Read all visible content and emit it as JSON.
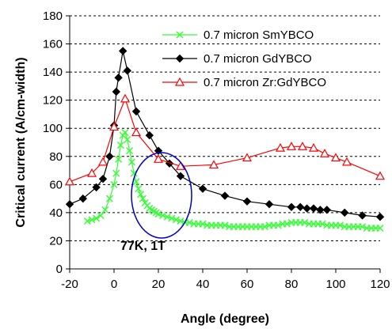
{
  "chart_data": {
    "type": "line",
    "xlabel": "Angle (degree)",
    "ylabel": "Critical current (A/cm-width)",
    "xlim": [
      -20,
      120
    ],
    "ylim": [
      0,
      180
    ],
    "x_ticks": [
      -20,
      0,
      20,
      40,
      60,
      80,
      100,
      120
    ],
    "y_ticks": [
      0,
      20,
      40,
      60,
      80,
      100,
      120,
      140,
      160,
      180
    ],
    "grid": "none",
    "legend_placement": "top-right",
    "annotation": "77K, 1T",
    "highlight": "ellipse around 20 degree, 60-80 A/cm",
    "series": [
      {
        "name": "0.7 micron SmYBCO",
        "color": "#33ff33",
        "marker": "x",
        "points": [
          [
            -12,
            34
          ],
          [
            -10,
            35
          ],
          [
            -8,
            36
          ],
          [
            -6,
            38
          ],
          [
            -4,
            42
          ],
          [
            -2,
            50
          ],
          [
            0,
            60
          ],
          [
            1,
            68
          ],
          [
            2,
            78
          ],
          [
            3,
            88
          ],
          [
            4,
            95
          ],
          [
            5,
            97
          ],
          [
            6,
            92
          ],
          [
            7,
            84
          ],
          [
            8,
            76
          ],
          [
            9,
            68
          ],
          [
            10,
            62
          ],
          [
            11,
            57
          ],
          [
            12,
            53
          ],
          [
            13,
            50
          ],
          [
            14,
            47
          ],
          [
            15,
            45
          ],
          [
            16,
            43
          ],
          [
            17,
            42
          ],
          [
            18,
            41
          ],
          [
            19,
            40
          ],
          [
            20,
            39
          ],
          [
            22,
            38
          ],
          [
            24,
            37
          ],
          [
            26,
            36
          ],
          [
            28,
            35
          ],
          [
            30,
            34
          ],
          [
            32,
            33
          ],
          [
            34,
            33
          ],
          [
            36,
            32
          ],
          [
            38,
            32
          ],
          [
            40,
            32
          ],
          [
            42,
            31
          ],
          [
            44,
            31
          ],
          [
            46,
            31
          ],
          [
            48,
            31
          ],
          [
            50,
            31
          ],
          [
            52,
            30
          ],
          [
            54,
            30
          ],
          [
            56,
            30
          ],
          [
            58,
            30
          ],
          [
            60,
            30
          ],
          [
            62,
            30
          ],
          [
            64,
            30
          ],
          [
            66,
            30
          ],
          [
            68,
            30
          ],
          [
            70,
            31
          ],
          [
            72,
            31
          ],
          [
            74,
            31
          ],
          [
            76,
            32
          ],
          [
            78,
            32
          ],
          [
            80,
            33
          ],
          [
            82,
            33
          ],
          [
            84,
            33
          ],
          [
            86,
            33
          ],
          [
            88,
            32
          ],
          [
            90,
            32
          ],
          [
            92,
            32
          ],
          [
            94,
            32
          ],
          [
            96,
            31
          ],
          [
            98,
            31
          ],
          [
            100,
            31
          ],
          [
            102,
            31
          ],
          [
            104,
            30
          ],
          [
            106,
            30
          ],
          [
            108,
            30
          ],
          [
            110,
            30
          ],
          [
            112,
            30
          ],
          [
            114,
            29
          ],
          [
            116,
            29
          ],
          [
            118,
            29
          ],
          [
            120,
            29
          ]
        ]
      },
      {
        "name": "0.7 micron GdYBCO",
        "color": "#000000",
        "marker": "diamond",
        "points": [
          [
            -20,
            46
          ],
          [
            -14,
            50
          ],
          [
            -8,
            58
          ],
          [
            -5,
            64
          ],
          [
            -2,
            80
          ],
          [
            0,
            102
          ],
          [
            1,
            126
          ],
          [
            2,
            136
          ],
          [
            4,
            155
          ],
          [
            6,
            141
          ],
          [
            10,
            112
          ],
          [
            16,
            95
          ],
          [
            20,
            84
          ],
          [
            25,
            75
          ],
          [
            30,
            66
          ],
          [
            40,
            57
          ],
          [
            50,
            52
          ],
          [
            60,
            48
          ],
          [
            70,
            46
          ],
          [
            80,
            44
          ],
          [
            84,
            44
          ],
          [
            87,
            43
          ],
          [
            90,
            43
          ],
          [
            93,
            42
          ],
          [
            96,
            42
          ],
          [
            104,
            40
          ],
          [
            112,
            38
          ],
          [
            120,
            37
          ]
        ]
      },
      {
        "name": "0.7 micron Zr:GdYBCO",
        "color": "#ff0000",
        "marker": "triangle",
        "points": [
          [
            -20,
            62
          ],
          [
            -10,
            68
          ],
          [
            -5,
            76
          ],
          [
            0,
            101
          ],
          [
            5,
            121
          ],
          [
            10,
            97
          ],
          [
            20,
            78
          ],
          [
            30,
            73
          ],
          [
            45,
            74
          ],
          [
            60,
            79
          ],
          [
            75,
            86
          ],
          [
            80,
            87
          ],
          [
            85,
            87
          ],
          [
            90,
            86
          ],
          [
            95,
            82
          ],
          [
            100,
            79
          ],
          [
            105,
            76
          ],
          [
            120,
            66
          ]
        ]
      }
    ]
  }
}
